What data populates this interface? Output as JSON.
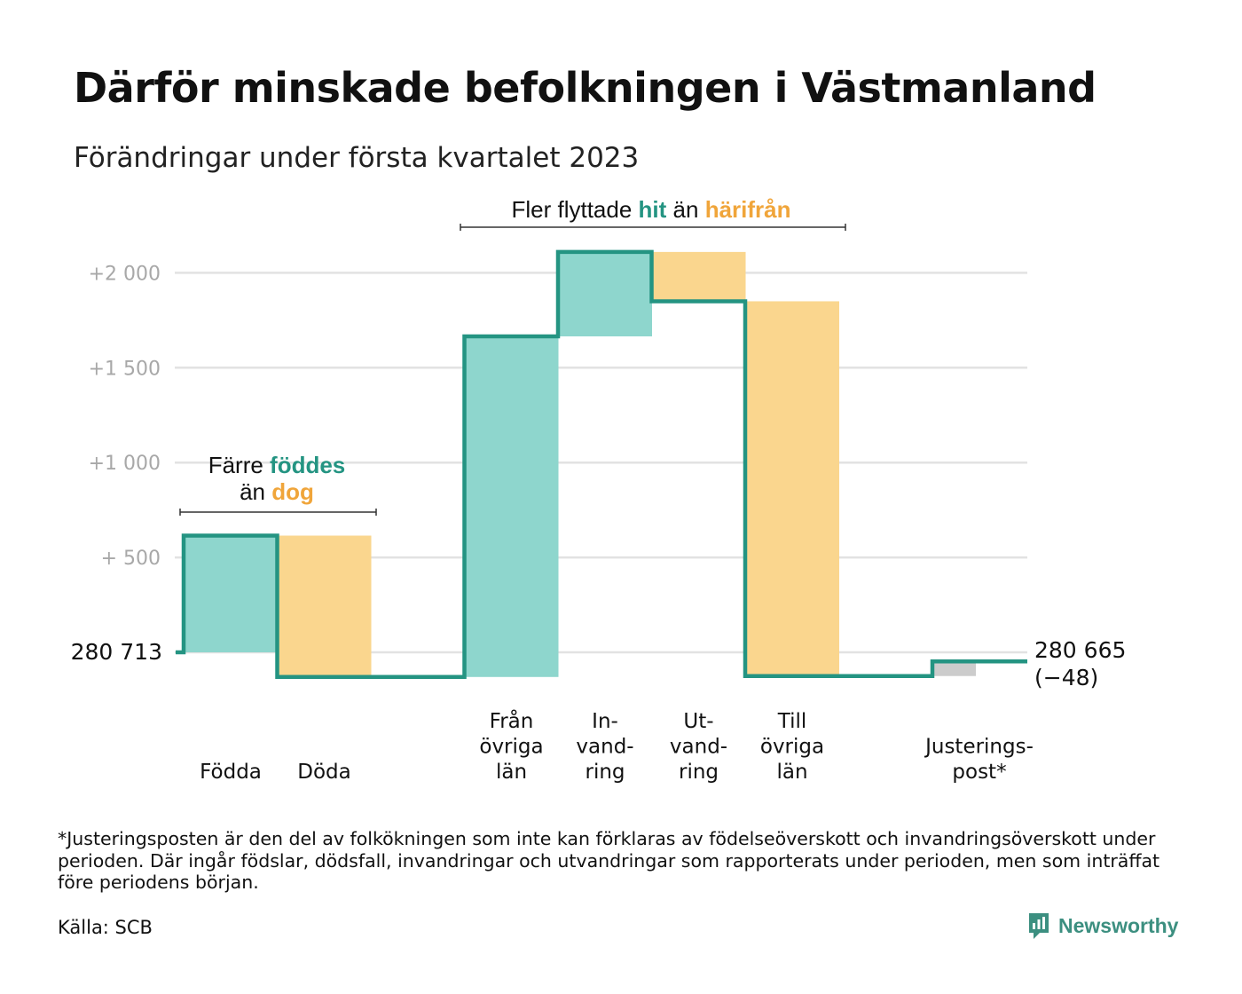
{
  "title": "Därför minskade befolkningen i Västmanland",
  "subtitle": "Förändringar under första kvartalet 2023",
  "colors": {
    "increase": "#8ed6cd",
    "decrease": "#fad68e",
    "adjustment": "#cccccc",
    "line": "#249482",
    "grid": "#e2e2e2",
    "teal_text": "#249482",
    "orange_text": "#f0a53a",
    "brand": "#3c8f80"
  },
  "annotations": {
    "births": {
      "line1_pre": "Färre ",
      "line1_hl": "föddes",
      "line2_pre": "än ",
      "line2_hl": "dog"
    },
    "migration": {
      "pre": "Fler flyttade ",
      "hl1": "hit",
      "mid": " än ",
      "hl2": "härifrån"
    }
  },
  "chart_data": {
    "type": "waterfall",
    "start_label": "280 713",
    "end_label": "280 665",
    "end_change_label": "(−48)",
    "ylim": [
      -150,
      2200
    ],
    "y_ticks": [
      {
        "value": 500,
        "label": "+ 500"
      },
      {
        "value": 1000,
        "label": "+1 000"
      },
      {
        "value": 1500,
        "label": "+1 500"
      },
      {
        "value": 2000,
        "label": "+2 000"
      }
    ],
    "grid": true,
    "categories": [
      {
        "label": [
          "Födda"
        ],
        "from": 0,
        "to": 615,
        "kind": "increase"
      },
      {
        "label": [
          "Döda"
        ],
        "from": 615,
        "to": -130,
        "kind": "decrease"
      },
      {
        "label": [
          "Från",
          "övriga",
          "län"
        ],
        "from": -130,
        "to": 1665,
        "kind": "increase"
      },
      {
        "label": [
          "In-",
          "vand-",
          "ring"
        ],
        "from": 1665,
        "to": 2110,
        "kind": "increase"
      },
      {
        "label": [
          "Ut-",
          "vand-",
          "ring"
        ],
        "from": 2110,
        "to": 1850,
        "kind": "decrease"
      },
      {
        "label": [
          "Till",
          "övriga",
          "län"
        ],
        "from": 1850,
        "to": -125,
        "kind": "decrease"
      },
      {
        "label": [
          "Justerings-",
          "post*"
        ],
        "from": -125,
        "to": -48,
        "kind": "adjustment"
      }
    ]
  },
  "footnote": "*Justeringsposten är den del av folkökningen som inte kan förklaras av födelseöverskott och invandringsöverskott under perioden. Där ingår födslar, dödsfall, invandringar och utvandringar som rapporterats under perioden, men som inträffat före periodens början.",
  "source": "Källa: SCB",
  "brand": {
    "name": "Newsworthy",
    "icon": "newsworthy-logo-icon"
  }
}
